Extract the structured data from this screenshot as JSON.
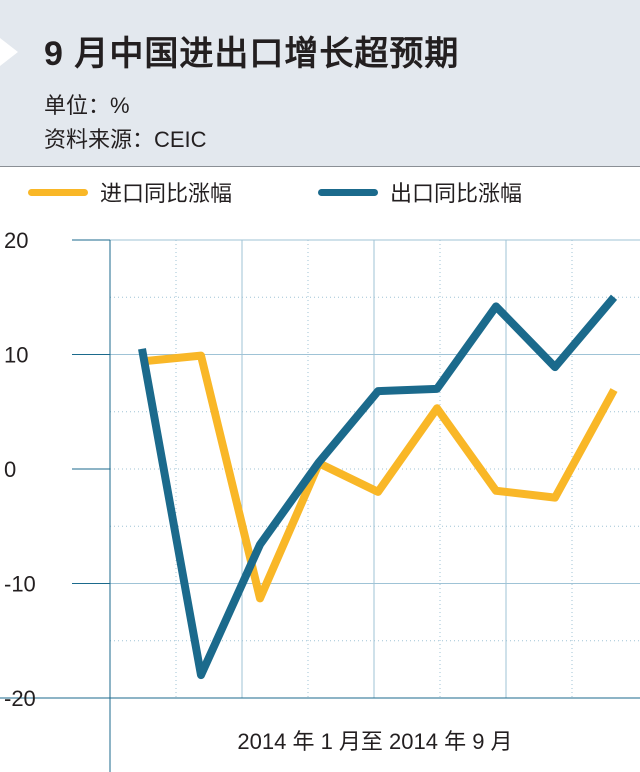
{
  "header": {
    "title": "9 月中国进出口增长超预期",
    "unit_line": "单位：%",
    "source_line": "资料来源：CEIC"
  },
  "colors": {
    "header_bg": "#e3e8ee",
    "import_series": "#f9b727",
    "export_series": "#1b6a8c",
    "grid": "#9fc3d6"
  },
  "chart_data": {
    "type": "line",
    "title": "9 月中国进出口增长超预期",
    "unit": "单位：%",
    "source": "资料来源：CEIC",
    "x": [
      "2014-01",
      "2014-02",
      "2014-03",
      "2014-04",
      "2014-05",
      "2014-06",
      "2014-07",
      "2014-08",
      "2014-09"
    ],
    "xlabel": "2014 年 1 月至 2014 年 9 月",
    "ylabel": "",
    "ylim": [
      -20,
      20
    ],
    "yticks": [
      "20",
      "10",
      "0",
      "-10",
      "-20"
    ],
    "grid": true,
    "legend_position": "top",
    "series": [
      {
        "name": "进口同比涨幅",
        "values": [
          9.4,
          9.9,
          -11.3,
          0.5,
          -2.0,
          5.3,
          -1.9,
          -2.5,
          6.9
        ]
      },
      {
        "name": "出口同比涨幅",
        "values": [
          10.5,
          -18.0,
          -6.6,
          0.6,
          6.8,
          7.0,
          14.2,
          8.9,
          15.0
        ]
      }
    ]
  }
}
